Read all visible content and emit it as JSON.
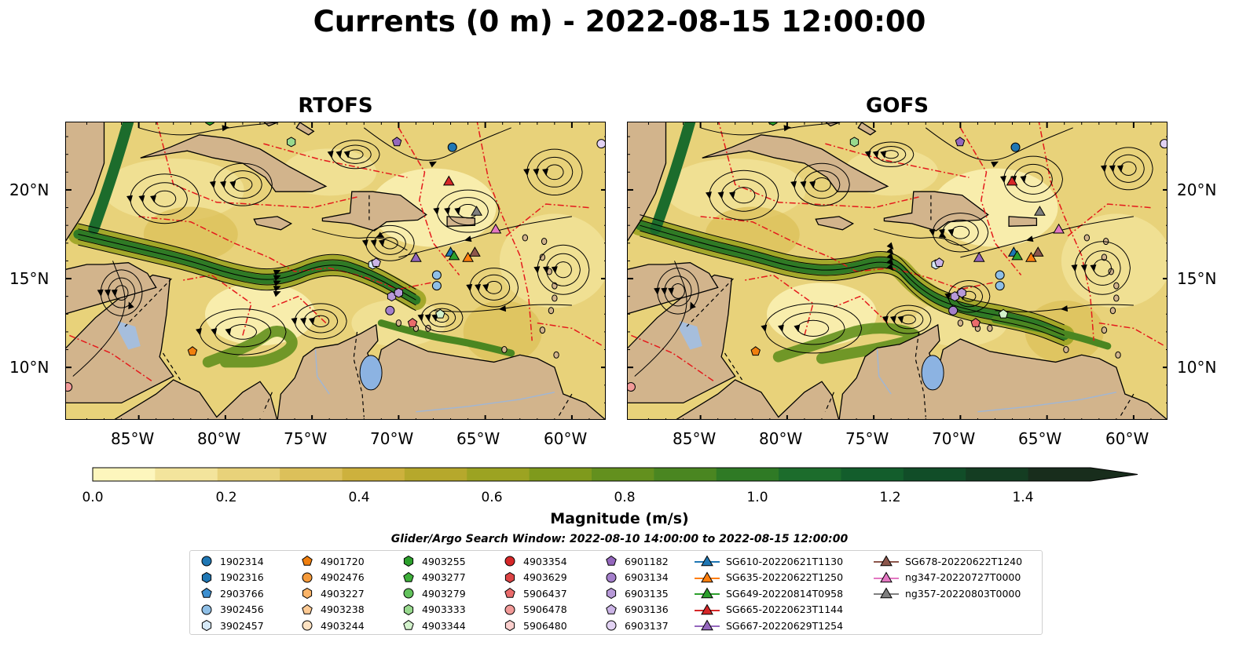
{
  "title": "Currents (0 m) - 2022-08-15 12:00:00",
  "panels": [
    {
      "title": "RTOFS"
    },
    {
      "title": "GOFS"
    }
  ],
  "lon_ticks": [
    "85°W",
    "80°W",
    "75°W",
    "70°W",
    "65°W",
    "60°W"
  ],
  "lat_ticks": [
    "20°N",
    "15°N",
    "10°N"
  ],
  "colorbar": {
    "label": "Magnitude (m/s)",
    "ticks": [
      "0.0",
      "0.2",
      "0.4",
      "0.6",
      "0.8",
      "1.0",
      "1.2",
      "1.4"
    ],
    "range": [
      0.0,
      1.5
    ],
    "colors": [
      "#fdf6bd",
      "#f3e49c",
      "#e8d27a",
      "#dcc05a",
      "#cdb13d",
      "#b6a82c",
      "#9ca322",
      "#7f9a1c",
      "#63901e",
      "#4a8621",
      "#2f7a25",
      "#1c6c2c",
      "#135d2c",
      "#114d28",
      "#143d22",
      "#182d1c"
    ]
  },
  "search_window": "Glider/Argo Search Window: 2022-08-10 14:00:00 to 2022-08-15 12:00:00",
  "legend": [
    {
      "label": "1902314",
      "marker": "circle",
      "color": "#1f77b4"
    },
    {
      "label": "1902316",
      "marker": "hexagon",
      "color": "#1f77b4"
    },
    {
      "label": "2903766",
      "marker": "pentagon",
      "color": "#3c8fd0"
    },
    {
      "label": "3902456",
      "marker": "circle",
      "color": "#8fbfe6"
    },
    {
      "label": "3902457",
      "marker": "hexagon",
      "color": "#d6e9f7"
    },
    {
      "label": "4901720",
      "marker": "pentagon",
      "color": "#f07f0e"
    },
    {
      "label": "4902476",
      "marker": "circle",
      "color": "#f59a3a"
    },
    {
      "label": "4903227",
      "marker": "hexagon",
      "color": "#fbb468"
    },
    {
      "label": "4903238",
      "marker": "pentagon",
      "color": "#fdca94"
    },
    {
      "label": "4903244",
      "marker": "circle",
      "color": "#fde2c2"
    },
    {
      "label": "4903255",
      "marker": "hexagon",
      "color": "#2ca02c"
    },
    {
      "label": "4903277",
      "marker": "pentagon",
      "color": "#3eaf3a"
    },
    {
      "label": "4903279",
      "marker": "circle",
      "color": "#62c25c"
    },
    {
      "label": "4903333",
      "marker": "hexagon",
      "color": "#98d98e"
    },
    {
      "label": "4903344",
      "marker": "pentagon",
      "color": "#d3f2cc"
    },
    {
      "label": "4903354",
      "marker": "circle",
      "color": "#d62728"
    },
    {
      "label": "4903629",
      "marker": "hexagon",
      "color": "#dd4445"
    },
    {
      "label": "5906437",
      "marker": "pentagon",
      "color": "#ea6b6b"
    },
    {
      "label": "5906478",
      "marker": "circle",
      "color": "#f29a98"
    },
    {
      "label": "5906480",
      "marker": "hexagon",
      "color": "#fbcfcd"
    },
    {
      "label": "6901182",
      "marker": "pentagon",
      "color": "#9467bd"
    },
    {
      "label": "6903134",
      "marker": "circle",
      "color": "#a47fcb"
    },
    {
      "label": "6903135",
      "marker": "hexagon",
      "color": "#b799d8"
    },
    {
      "label": "6903136",
      "marker": "pentagon",
      "color": "#cbb4e6"
    },
    {
      "label": "6903137",
      "marker": "circle",
      "color": "#e2d2f3"
    },
    {
      "label": "SG610-20220621T1130",
      "marker": "triangle",
      "color": "#1f77b4"
    },
    {
      "label": "SG635-20220622T1250",
      "marker": "triangle",
      "color": "#ff7f0e"
    },
    {
      "label": "SG649-20220814T0958",
      "marker": "triangle",
      "color": "#2ca02c"
    },
    {
      "label": "SG665-20220623T1144",
      "marker": "triangle",
      "color": "#d62728"
    },
    {
      "label": "SG667-20220629T1254",
      "marker": "triangle",
      "color": "#9467bd"
    },
    {
      "label": "SG678-20220622T1240",
      "marker": "triangle",
      "color": "#8c564b"
    },
    {
      "label": "ng347-20220727T0000",
      "marker": "triangle",
      "color": "#e377c2"
    },
    {
      "label": "ng357-20220803T0000",
      "marker": "triangle",
      "color": "#7f7f7f"
    }
  ],
  "colors": {
    "land": "#d2b48c",
    "lake": "#8cb3e2",
    "eez": "#e41a1c",
    "border": "#000000"
  }
}
